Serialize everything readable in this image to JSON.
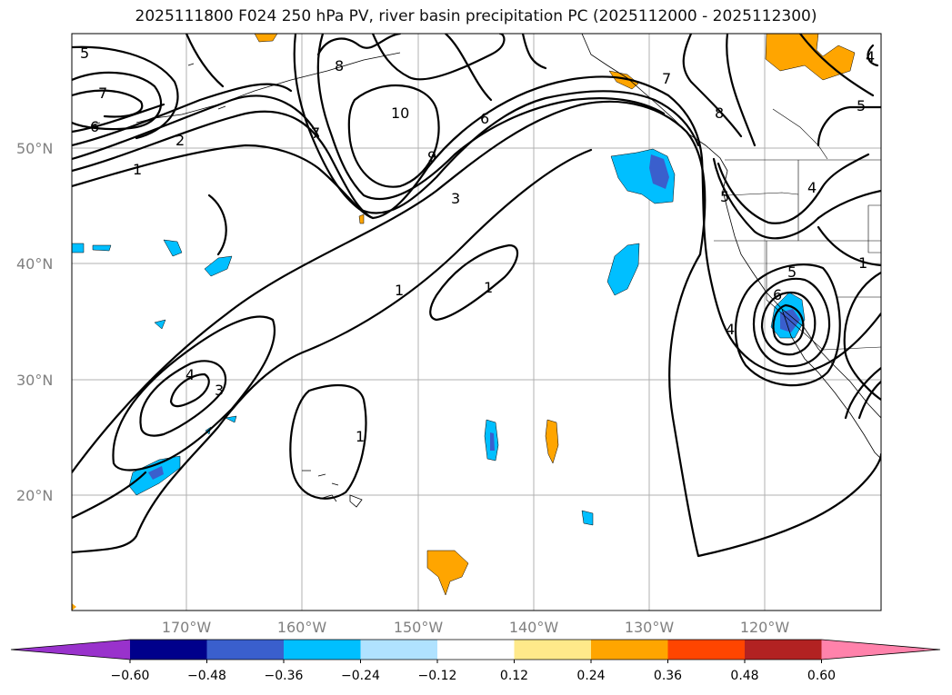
{
  "title": "2025111800 F024 250 hPa PV, river basin precipitation PC (2025112000 - 2025112300)",
  "lat_labels": [
    "50°N",
    "40°N",
    "30°N",
    "20°N"
  ],
  "lon_labels": [
    "170°W",
    "160°W",
    "150°W",
    "140°W",
    "130°W",
    "120°W"
  ],
  "contour_labels": [
    "5",
    "7",
    "6",
    "2",
    "1",
    "8",
    "7",
    "10",
    "9",
    "6",
    "3",
    "1",
    "1",
    "4",
    "3",
    "1",
    "7",
    "8",
    "5",
    "5",
    "4",
    "4",
    "5",
    "6",
    "4",
    "1"
  ],
  "colorbar": {
    "colors": [
      "#9932cc",
      "#00008b",
      "#3a5fcd",
      "#00bfff",
      "#b0e2ff",
      "#ffffff",
      "#ffe98a",
      "#ffa500",
      "#ff4500",
      "#b22222",
      "#ff82ab"
    ],
    "ticks": [
      "−0.60",
      "−0.48",
      "−0.36",
      "−0.24",
      "−0.12",
      "0.12",
      "0.24",
      "0.36",
      "0.48",
      "0.60"
    ]
  },
  "shading_colors": {
    "light_blue": "#00bfff",
    "mid_blue": "#3a5fcd",
    "orange": "#ffa500"
  }
}
